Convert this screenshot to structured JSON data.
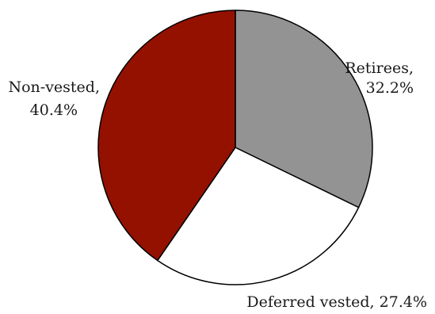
{
  "chart_data": {
    "type": "pie",
    "slices": [
      {
        "name": "Retirees",
        "value": 32.2,
        "label": "Retirees,",
        "pct_text": "32.2%",
        "color": "#939393"
      },
      {
        "name": "Deferred vested",
        "value": 27.4,
        "label": "Deferred vested, 27.4%",
        "pct_text": "",
        "color": "#ffffff"
      },
      {
        "name": "Non-vested",
        "value": 40.4,
        "label": "Non-vested,",
        "pct_text": "40.4%",
        "color": "#941100"
      }
    ],
    "start": "12 o'clock",
    "direction": "clockwise",
    "outline_color": "#000000"
  }
}
